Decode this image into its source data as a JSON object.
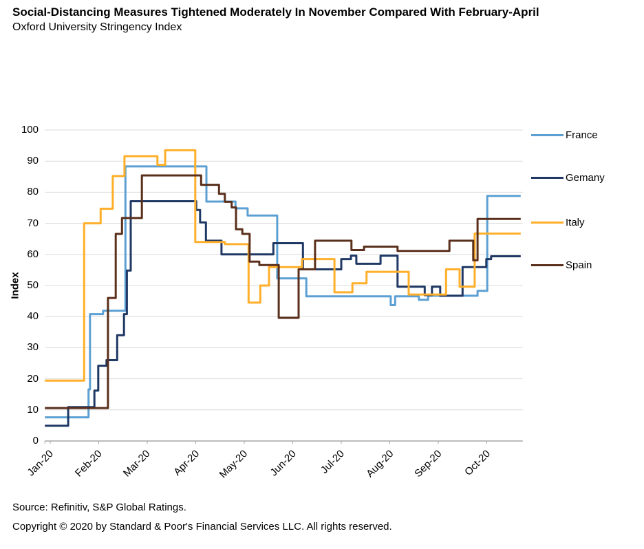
{
  "header": {
    "title": "Social-Distancing Measures Tightened Moderately In November Compared With February-April",
    "subtitle": "Oxford University Stringency Index"
  },
  "chart_data": {
    "type": "line",
    "step": true,
    "title": "Social-Distancing Measures Tightened Moderately In November Compared With February-April",
    "subtitle": "Oxford University Stringency Index",
    "ylabel": "Index",
    "ylim": [
      0,
      100
    ],
    "y_ticks": [
      100,
      90,
      80,
      70,
      60,
      50,
      40,
      30,
      20,
      10,
      0
    ],
    "x_ticks": [
      "Jan-20",
      "Feb-20",
      "Mar-20",
      "Apr-20",
      "May-20",
      "Jun-20",
      "Jul-20",
      "Aug-20",
      "Sep-20",
      "Oct-20"
    ],
    "x_unit": "months since Jan-20 tick (step breakpoints [month, index-value])",
    "x_range": [
      -0.11,
      9.7
    ],
    "grid": "horizontal",
    "legend_position": "right",
    "colors": {
      "gridline": "#D9D9D9",
      "axis": "#A6A6A6"
    },
    "series": [
      {
        "name": "France",
        "color": "#5CA0D3",
        "points": [
          [
            -0.11,
            7.6
          ],
          [
            0.79,
            16.6
          ],
          [
            0.82,
            40.8
          ],
          [
            1.09,
            41.9
          ],
          [
            1.55,
            88.3
          ],
          [
            3.22,
            77.0
          ],
          [
            3.82,
            74.8
          ],
          [
            4.07,
            72.5
          ],
          [
            4.68,
            52.3
          ],
          [
            5.28,
            46.5
          ],
          [
            7.02,
            43.7
          ],
          [
            7.11,
            46.5
          ],
          [
            7.6,
            45.4
          ],
          [
            7.79,
            46.7
          ],
          [
            8.81,
            48.3
          ],
          [
            9.01,
            78.8
          ]
        ]
      },
      {
        "name": "Gemany",
        "color": "#1F3864",
        "points": [
          [
            -0.11,
            4.9
          ],
          [
            0.37,
            10.9
          ],
          [
            0.91,
            16.2
          ],
          [
            0.99,
            24.2
          ],
          [
            1.16,
            26.0
          ],
          [
            1.38,
            34.0
          ],
          [
            1.52,
            40.8
          ],
          [
            1.58,
            54.8
          ],
          [
            1.66,
            77.1
          ],
          [
            3.01,
            74.3
          ],
          [
            3.09,
            70.3
          ],
          [
            3.21,
            64.4
          ],
          [
            3.53,
            60.0
          ],
          [
            4.6,
            63.6
          ],
          [
            5.21,
            55.2
          ],
          [
            6.0,
            58.5
          ],
          [
            6.2,
            59.6
          ],
          [
            6.31,
            57.0
          ],
          [
            6.81,
            59.6
          ],
          [
            7.16,
            49.6
          ],
          [
            7.72,
            46.9
          ],
          [
            7.87,
            49.6
          ],
          [
            8.04,
            46.7
          ],
          [
            8.5,
            55.9
          ],
          [
            8.99,
            58.5
          ],
          [
            9.09,
            59.4
          ]
        ]
      },
      {
        "name": "Italy",
        "color": "#FFAF29",
        "points": [
          [
            -0.11,
            19.4
          ],
          [
            0.7,
            70.0
          ],
          [
            1.04,
            74.7
          ],
          [
            1.29,
            85.2
          ],
          [
            1.53,
            91.6
          ],
          [
            2.21,
            88.8
          ],
          [
            2.37,
            93.5
          ],
          [
            2.99,
            64.0
          ],
          [
            3.6,
            63.3
          ],
          [
            4.09,
            44.5
          ],
          [
            4.33,
            50.0
          ],
          [
            4.51,
            55.9
          ],
          [
            5.19,
            58.5
          ],
          [
            5.86,
            47.8
          ],
          [
            6.23,
            50.7
          ],
          [
            6.52,
            54.4
          ],
          [
            7.39,
            47.1
          ],
          [
            8.16,
            55.2
          ],
          [
            8.44,
            49.6
          ],
          [
            8.75,
            66.7
          ]
        ]
      },
      {
        "name": "Spain",
        "color": "#5A2F1B",
        "points": [
          [
            -0.11,
            10.6
          ],
          [
            1.19,
            46.0
          ],
          [
            1.35,
            66.6
          ],
          [
            1.48,
            71.7
          ],
          [
            1.89,
            85.4
          ],
          [
            3.11,
            82.4
          ],
          [
            3.48,
            79.5
          ],
          [
            3.6,
            76.9
          ],
          [
            3.74,
            75.1
          ],
          [
            3.83,
            68.1
          ],
          [
            3.96,
            66.6
          ],
          [
            4.11,
            57.7
          ],
          [
            4.31,
            56.6
          ],
          [
            4.71,
            39.6
          ],
          [
            5.12,
            55.2
          ],
          [
            5.46,
            64.4
          ],
          [
            6.21,
            61.4
          ],
          [
            6.47,
            62.5
          ],
          [
            7.16,
            61.1
          ],
          [
            8.23,
            64.4
          ],
          [
            8.72,
            58.1
          ],
          [
            8.81,
            71.4
          ]
        ]
      }
    ]
  },
  "footer": {
    "source": "Source: Refinitiv, S&P Global Ratings.",
    "copyright": "Copyright © 2020 by Standard & Poor's Financial Services LLC. All rights reserved."
  }
}
